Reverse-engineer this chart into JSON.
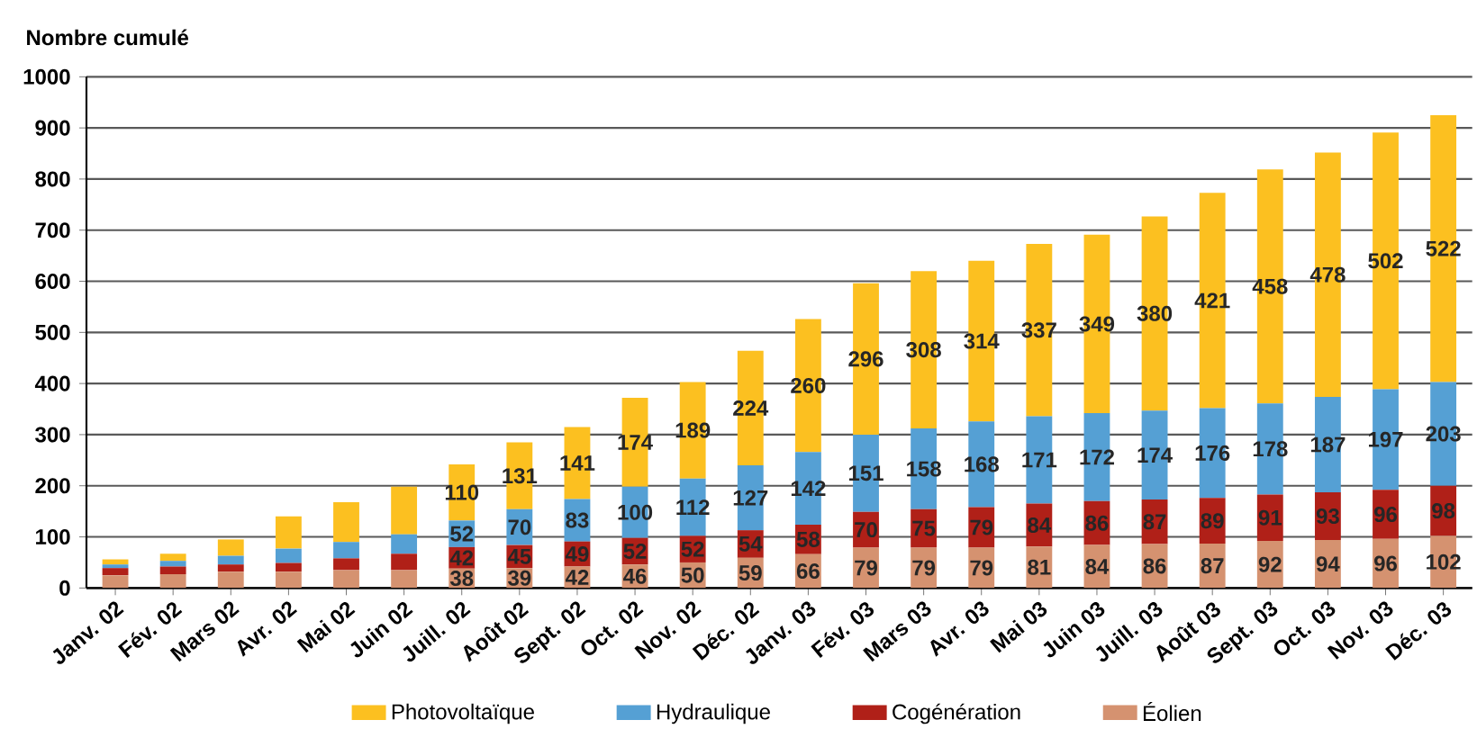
{
  "chart_data": {
    "type": "bar",
    "stacked": true,
    "ylabel": "Nombre cumulé",
    "categories": [
      "Janv. 02",
      "Fév. 02",
      "Mars 02",
      "Avr. 02",
      "Mai 02",
      "Juin 02",
      "Juill. 02",
      "Août 02",
      "Sept. 02",
      "Oct. 02",
      "Nov. 02",
      "Déc. 02",
      "Janv. 03",
      "Fév. 03",
      "Mars 03",
      "Avr. 03",
      "Mai 03",
      "Juin 03",
      "Juill. 03",
      "Août 03",
      "Sept. 03",
      "Oct. 03",
      "Nov. 03",
      "Déc. 03"
    ],
    "series": [
      {
        "name": "Éolien",
        "color": "#d59270",
        "values": [
          25,
          27,
          32,
          32,
          35,
          35,
          38,
          39,
          42,
          46,
          50,
          59,
          66,
          79,
          79,
          79,
          81,
          84,
          86,
          87,
          92,
          94,
          96,
          102
        ],
        "value_labels": [
          null,
          null,
          null,
          null,
          null,
          null,
          "38",
          "39",
          "42",
          "46",
          "50",
          "59",
          "66",
          "79",
          "79",
          "79",
          "81",
          "84",
          "86",
          "87",
          "92",
          "94",
          "96",
          "102"
        ]
      },
      {
        "name": "Cogénération",
        "color": "#b02018",
        "values": [
          14,
          15,
          14,
          17,
          23,
          32,
          42,
          45,
          49,
          52,
          52,
          54,
          58,
          70,
          75,
          79,
          84,
          86,
          87,
          89,
          91,
          93,
          96,
          98
        ],
        "value_labels": [
          null,
          null,
          null,
          null,
          null,
          null,
          "42",
          "45",
          "49",
          "52",
          "52",
          "54",
          "58",
          "70",
          "75",
          "79",
          "84",
          "86",
          "87",
          "89",
          "91",
          "93",
          "96",
          "98"
        ]
      },
      {
        "name": "Hydraulique",
        "color": "#55a0d4",
        "values": [
          7,
          11,
          17,
          28,
          32,
          38,
          52,
          70,
          83,
          100,
          112,
          127,
          142,
          151,
          158,
          168,
          171,
          172,
          174,
          176,
          178,
          187,
          197,
          203
        ],
        "value_labels": [
          null,
          null,
          null,
          null,
          null,
          null,
          "52",
          "70",
          "83",
          "100",
          "112",
          "127",
          "142",
          "151",
          "158",
          "168",
          "171",
          "172",
          "174",
          "176",
          "178",
          "187",
          "197",
          "203"
        ]
      },
      {
        "name": "Photovoltaïque",
        "color": "#fcc020",
        "values": [
          10,
          14,
          32,
          63,
          78,
          93,
          110,
          131,
          141,
          174,
          189,
          224,
          260,
          296,
          308,
          314,
          337,
          349,
          380,
          421,
          458,
          478,
          502,
          522
        ],
        "value_labels": [
          null,
          null,
          null,
          null,
          null,
          null,
          "110",
          "131",
          "141",
          "174",
          "189",
          "224",
          "260",
          "296",
          "308",
          "314",
          "337",
          "349",
          "380",
          "421",
          "458",
          "478",
          "502",
          "522"
        ]
      }
    ],
    "ylim": [
      0,
      1000
    ],
    "yticks": [
      0,
      100,
      200,
      300,
      400,
      500,
      600,
      700,
      800,
      900,
      1000
    ],
    "grid": "y",
    "legend": "bottom"
  }
}
